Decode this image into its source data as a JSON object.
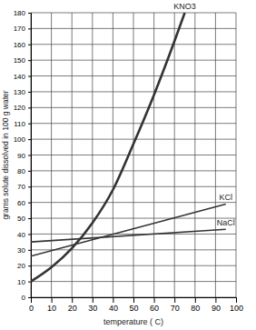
{
  "chart_data": {
    "type": "line",
    "xlabel": "temperature ( C)",
    "ylabel": "grams solute dissolved in 100 g water",
    "series": [
      {
        "name": "KNO3",
        "x": [
          0,
          10,
          20,
          30,
          40,
          50,
          60,
          70,
          75
        ],
        "values": [
          10,
          19,
          31,
          47,
          68,
          97,
          128,
          162,
          180
        ],
        "color": "#333333"
      },
      {
        "name": "KCl",
        "x": [
          0,
          95
        ],
        "values": [
          26,
          59
        ],
        "color": "#333333"
      },
      {
        "name": "NaCl",
        "x": [
          0,
          95
        ],
        "values": [
          35,
          43
        ],
        "color": "#333333"
      }
    ],
    "xlim": [
      0,
      100
    ],
    "xticks": [
      0,
      10,
      20,
      30,
      40,
      50,
      60,
      70,
      80,
      90,
      100
    ],
    "ylim": [
      0,
      180
    ],
    "yticks": [
      0,
      10,
      20,
      30,
      40,
      50,
      60,
      70,
      80,
      90,
      100,
      110,
      120,
      130,
      140,
      150,
      160,
      170,
      180
    ],
    "grid": true
  }
}
